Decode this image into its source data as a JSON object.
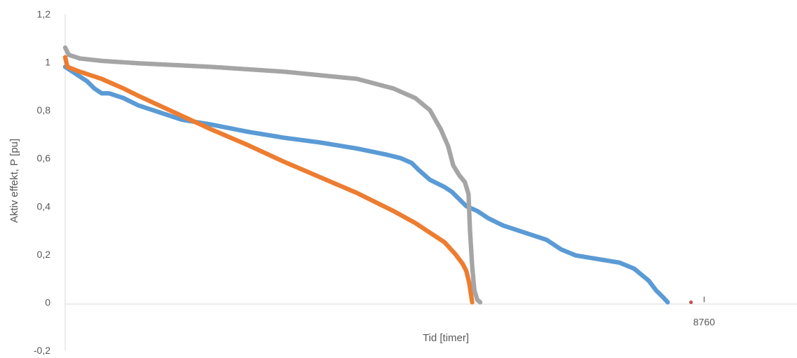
{
  "chart_data": {
    "type": "scatter",
    "xlabel": "Tid [timer]",
    "ylabel": "Aktiv effekt, P [pu]",
    "ylim": [
      -0.2,
      1.2
    ],
    "xlim": [
      0,
      10000
    ],
    "yticks": [
      "-0,2",
      "0",
      "0,2",
      "0,4",
      "0,6",
      "0,8",
      "1",
      "1,2"
    ],
    "xtick_label": "8760",
    "grid": false,
    "legend": "none",
    "series": [
      {
        "color": "#5b9bd5",
        "points": [
          [
            0,
            0.98
          ],
          [
            150,
            0.95
          ],
          [
            300,
            0.92
          ],
          [
            400,
            0.89
          ],
          [
            500,
            0.87
          ],
          [
            520,
            0.87
          ],
          [
            600,
            0.87
          ],
          [
            800,
            0.85
          ],
          [
            1000,
            0.82
          ],
          [
            1300,
            0.79
          ],
          [
            1600,
            0.76
          ],
          [
            2000,
            0.74
          ],
          [
            2500,
            0.71
          ],
          [
            3000,
            0.685
          ],
          [
            3500,
            0.665
          ],
          [
            4000,
            0.64
          ],
          [
            4400,
            0.615
          ],
          [
            4600,
            0.6
          ],
          [
            4750,
            0.58
          ],
          [
            4850,
            0.55
          ],
          [
            5000,
            0.51
          ],
          [
            5200,
            0.48
          ],
          [
            5300,
            0.46
          ],
          [
            5400,
            0.43
          ],
          [
            5500,
            0.4
          ],
          [
            5650,
            0.38
          ],
          [
            5800,
            0.35
          ],
          [
            6000,
            0.32
          ],
          [
            6300,
            0.29
          ],
          [
            6600,
            0.26
          ],
          [
            6800,
            0.22
          ],
          [
            7000,
            0.195
          ],
          [
            7300,
            0.18
          ],
          [
            7600,
            0.165
          ],
          [
            7800,
            0.14
          ],
          [
            8000,
            0.09
          ],
          [
            8100,
            0.05
          ],
          [
            8200,
            0.02
          ],
          [
            8260,
            0.0
          ]
        ]
      },
      {
        "color": "#ed7d31",
        "points": [
          [
            0,
            1.02
          ],
          [
            30,
            0.98
          ],
          [
            200,
            0.96
          ],
          [
            500,
            0.93
          ],
          [
            800,
            0.89
          ],
          [
            1000,
            0.86
          ],
          [
            1500,
            0.79
          ],
          [
            2000,
            0.72
          ],
          [
            2500,
            0.655
          ],
          [
            3000,
            0.585
          ],
          [
            3500,
            0.52
          ],
          [
            4000,
            0.455
          ],
          [
            4500,
            0.38
          ],
          [
            4800,
            0.33
          ],
          [
            5000,
            0.29
          ],
          [
            5200,
            0.25
          ],
          [
            5350,
            0.2
          ],
          [
            5450,
            0.16
          ],
          [
            5500,
            0.13
          ],
          [
            5540,
            0.08
          ],
          [
            5560,
            0.04
          ],
          [
            5580,
            0.0
          ]
        ]
      },
      {
        "color": "#a5a5a5",
        "points": [
          [
            0,
            1.06
          ],
          [
            50,
            1.03
          ],
          [
            200,
            1.015
          ],
          [
            500,
            1.005
          ],
          [
            1000,
            0.995
          ],
          [
            2000,
            0.98
          ],
          [
            3000,
            0.96
          ],
          [
            4000,
            0.93
          ],
          [
            4500,
            0.89
          ],
          [
            4800,
            0.85
          ],
          [
            5000,
            0.8
          ],
          [
            5150,
            0.72
          ],
          [
            5250,
            0.65
          ],
          [
            5320,
            0.57
          ],
          [
            5400,
            0.53
          ],
          [
            5480,
            0.5
          ],
          [
            5530,
            0.45
          ],
          [
            5550,
            0.3
          ],
          [
            5580,
            0.15
          ],
          [
            5610,
            0.05
          ],
          [
            5650,
            0.01
          ],
          [
            5690,
            0.0
          ]
        ]
      },
      {
        "color": "#c0504d",
        "points": [
          [
            8580,
            0.0
          ]
        ]
      }
    ]
  }
}
